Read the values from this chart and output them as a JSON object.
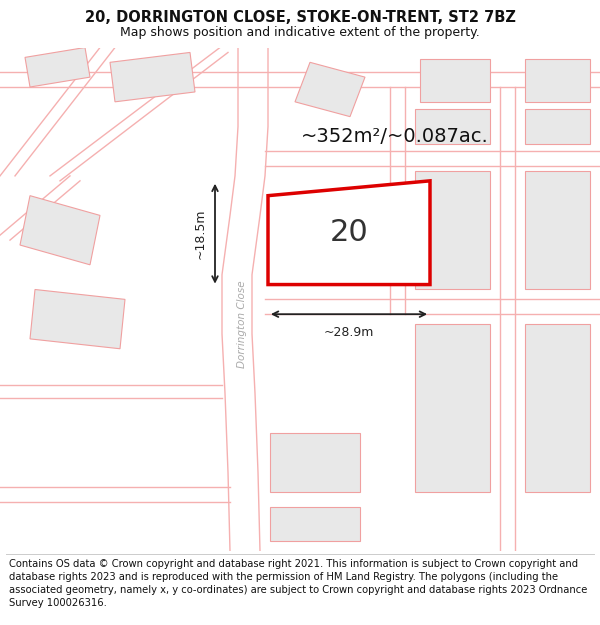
{
  "title": "20, DORRINGTON CLOSE, STOKE-ON-TRENT, ST2 7BZ",
  "subtitle": "Map shows position and indicative extent of the property.",
  "footer": "Contains OS data © Crown copyright and database right 2021. This information is subject to Crown copyright and database rights 2023 and is reproduced with the permission of HM Land Registry. The polygons (including the associated geometry, namely x, y co-ordinates) are subject to Crown copyright and database rights 2023 Ordnance Survey 100026316.",
  "area_text": "~352m²/~0.087ac.",
  "label_number": "20",
  "dim_width": "~28.9m",
  "dim_height": "~18.5m",
  "road_label": "Dorrington Close",
  "map_bg": "#ffffff",
  "building_fill": "#e8e8e8",
  "building_edge": "#f0a0a0",
  "highlight_fill": "#ffffff",
  "highlight_edge": "#dd0000",
  "road_line_color": "#f5b0b0",
  "road_fill": "#ffffff",
  "dim_color": "#222222",
  "label_color": "#333333",
  "area_color": "#111111",
  "road_label_color": "#aaaaaa",
  "title_color": "#111111",
  "footer_color": "#111111",
  "title_fontsize": 10.5,
  "subtitle_fontsize": 9,
  "footer_fontsize": 7.2,
  "area_fontsize": 14,
  "label_fontsize": 22
}
